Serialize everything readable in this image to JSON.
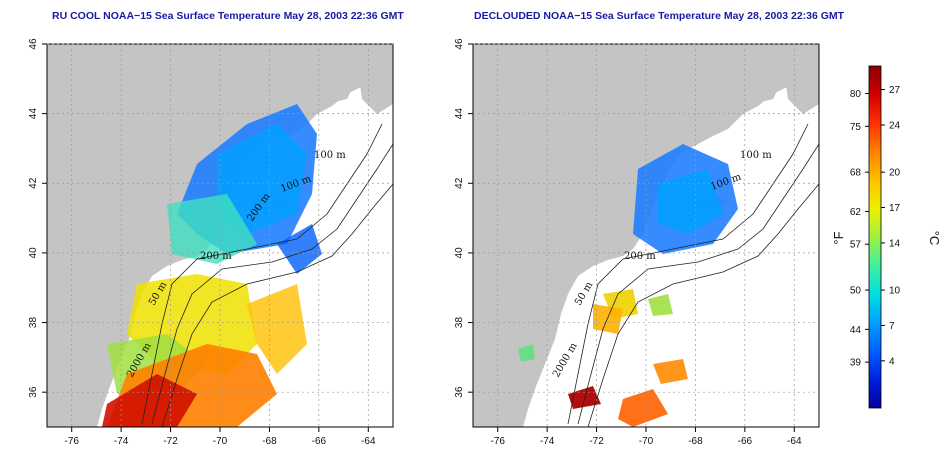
{
  "panels": [
    {
      "title": "RU COOL NOAA−15 Sea Surface Temperature May 28, 2003 22:36 GMT",
      "x_ticks": [
        "-76",
        "-74",
        "-72",
        "-70",
        "-68",
        "-66",
        "-64"
      ],
      "y_ticks": [
        "36",
        "38",
        "40",
        "42",
        "44",
        "46"
      ],
      "contour_labels": [
        "100 m",
        "100 m",
        "200 m",
        "200 m",
        "50 m",
        "2000 m"
      ]
    },
    {
      "title": "DECLOUDED NOAA−15 Sea Surface Temperature May 28, 2003 22:36 GMT",
      "x_ticks": [
        "-76",
        "-74",
        "-72",
        "-70",
        "-68",
        "-66",
        "-64"
      ],
      "y_ticks": [
        "36",
        "38",
        "40",
        "42",
        "44",
        "46"
      ],
      "contour_labels": [
        "100 m",
        "100 m",
        "200 m",
        "50 m",
        "2000 m"
      ]
    }
  ],
  "map_extent": {
    "lon": [
      -77,
      -63
    ],
    "lat": [
      35,
      46
    ]
  },
  "colorbar": {
    "fahrenheit_ticks": [
      "80",
      "75",
      "68",
      "62",
      "57",
      "50",
      "44",
      "39"
    ],
    "celsius_ticks": [
      "27",
      "24",
      "20",
      "17",
      "14",
      "10",
      "7",
      "4"
    ],
    "fahrenheit_unit": "°F",
    "celsius_unit": "°C",
    "colors": [
      "#0000a0",
      "#0020e0",
      "#0060ff",
      "#00a0ff",
      "#00e0e0",
      "#40f0a0",
      "#a0f040",
      "#f0f000",
      "#ffc000",
      "#ff8000",
      "#ff3000",
      "#d00000",
      "#8a0000"
    ]
  },
  "colors": {
    "land": "#c4c4c4",
    "water": "#ffffff",
    "title": "#1a1aa6"
  }
}
